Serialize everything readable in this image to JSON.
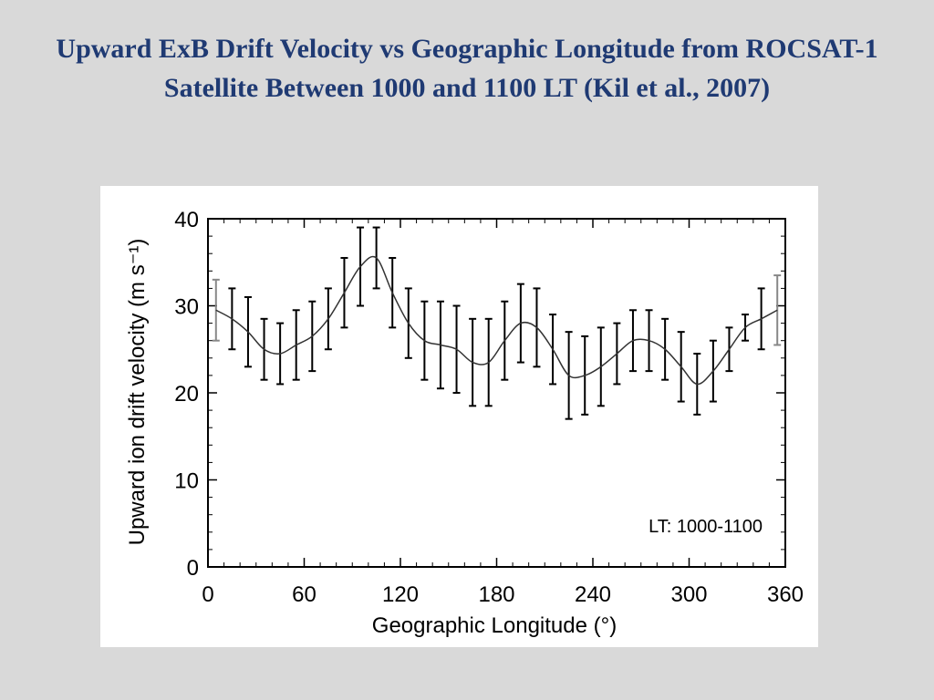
{
  "slide": {
    "title": "Upward ExB Drift Velocity vs Geographic Longitude from ROCSAT-1 Satellite Between 1000 and 1100 LT (Kil et al., 2007)"
  },
  "chart_data": {
    "type": "line",
    "xlabel": "Geographic Longitude (°)",
    "ylabel": "Upward ion drift velocity (m s⁻¹)",
    "annotation": "LT: 1000-1100",
    "xlim": [
      0,
      360
    ],
    "ylim": [
      0,
      40
    ],
    "xticks": [
      0,
      60,
      120,
      180,
      240,
      300,
      360
    ],
    "yticks": [
      0,
      10,
      20,
      30,
      40
    ],
    "grid": false,
    "x": [
      5,
      15,
      25,
      35,
      45,
      55,
      65,
      75,
      85,
      95,
      105,
      115,
      125,
      135,
      145,
      155,
      165,
      175,
      185,
      195,
      205,
      215,
      225,
      235,
      245,
      255,
      265,
      275,
      285,
      295,
      305,
      315,
      325,
      335,
      345,
      355
    ],
    "series": [
      {
        "values": [
          29.5,
          28.5,
          27.0,
          25.0,
          24.5,
          25.5,
          26.5,
          28.5,
          31.5,
          34.5,
          35.5,
          31.5,
          28.0,
          26.0,
          25.5,
          25.0,
          23.5,
          23.5,
          26.0,
          28.0,
          27.5,
          25.0,
          22.0,
          22.0,
          23.0,
          24.5,
          26.0,
          26.0,
          25.0,
          23.0,
          21.0,
          22.5,
          25.0,
          27.5,
          28.5,
          29.5
        ],
        "error": [
          3.5,
          3.5,
          4.0,
          3.5,
          3.5,
          4.0,
          4.0,
          3.5,
          4.0,
          4.5,
          3.5,
          4.0,
          4.0,
          4.5,
          5.0,
          5.0,
          5.0,
          5.0,
          4.5,
          4.5,
          4.5,
          4.0,
          5.0,
          4.5,
          4.5,
          3.5,
          3.5,
          3.5,
          3.5,
          4.0,
          3.5,
          3.5,
          2.5,
          1.5,
          3.5,
          4.0
        ],
        "error_color_first_last": "#888888"
      }
    ]
  }
}
